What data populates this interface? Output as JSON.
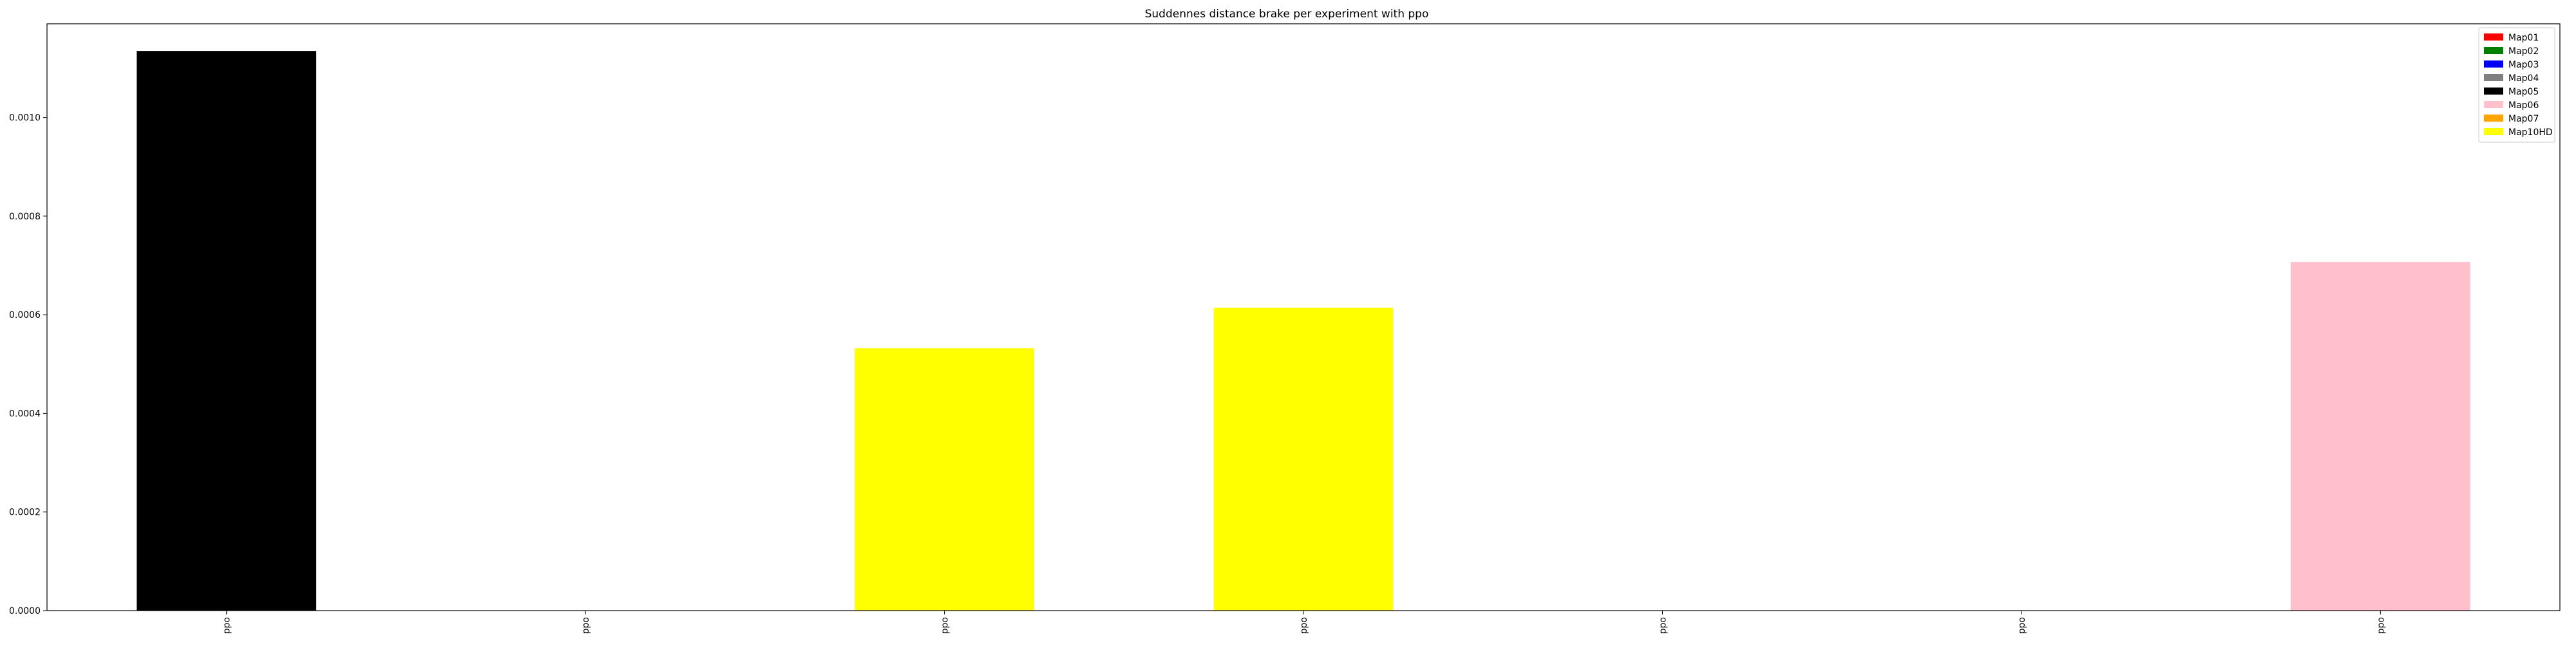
{
  "chart_data": {
    "type": "bar",
    "title": "Suddennes distance brake per experiment with ppo",
    "xlabel": "",
    "ylabel": "",
    "categories": [
      "ppo",
      "ppo",
      "ppo",
      "ppo",
      "ppo",
      "ppo",
      "ppo"
    ],
    "bars": [
      {
        "category_index": 0,
        "value": 0.001135,
        "color": "#000000",
        "legend": "Map05"
      },
      {
        "category_index": 1,
        "value": 0,
        "color": "#808080",
        "legend": "Map04"
      },
      {
        "category_index": 2,
        "value": 0.000532,
        "color": "#ffff00",
        "legend": "Map10HD"
      },
      {
        "category_index": 3,
        "value": 0.000614,
        "color": "#ffff00",
        "legend": "Map10HD"
      },
      {
        "category_index": 4,
        "value": 0,
        "color": "#ff0000",
        "legend": "Map01"
      },
      {
        "category_index": 5,
        "value": 0,
        "color": "#008000",
        "legend": "Map02"
      },
      {
        "category_index": 6,
        "value": 0.000707,
        "color": "#ffc0cb",
        "legend": "Map06"
      }
    ],
    "ylim": [
      0,
      0.00119
    ],
    "yticks": [
      0,
      0.0002,
      0.0004,
      0.0006,
      0.0008,
      0.001
    ],
    "ytick_labels": [
      "0.0000",
      "0.0002",
      "0.0004",
      "0.0006",
      "0.0008",
      "0.0010"
    ],
    "grid": false,
    "legend": {
      "placement": "top-right",
      "entries": [
        {
          "label": "Map01",
          "color": "#ff0000"
        },
        {
          "label": "Map02",
          "color": "#008000"
        },
        {
          "label": "Map03",
          "color": "#0000ff"
        },
        {
          "label": "Map04",
          "color": "#808080"
        },
        {
          "label": "Map05",
          "color": "#000000"
        },
        {
          "label": "Map06",
          "color": "#ffc0cb"
        },
        {
          "label": "Map07",
          "color": "#ffa500"
        },
        {
          "label": "Map10HD",
          "color": "#ffff00"
        }
      ]
    }
  }
}
